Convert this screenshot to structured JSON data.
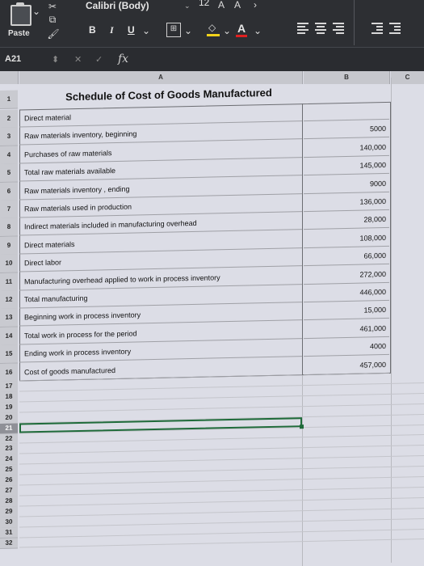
{
  "ribbon": {
    "paste_label": "Paste",
    "font_name": "Calibri (Body)",
    "font_size": "12",
    "bold": "B",
    "italic": "I",
    "underline": "U",
    "font_color_letter": "A",
    "highlight_color": "#f2d21b",
    "font_color": "#e02020"
  },
  "formula_bar": {
    "name_box": "A21",
    "fx": "fx",
    "cancel": "✕",
    "enter": "✓",
    "content": ""
  },
  "columns": [
    "A",
    "B",
    "C"
  ],
  "title_row": {
    "row": "1",
    "text": "Schedule of Cost of Goods Manufactured"
  },
  "rows": [
    {
      "row": "2",
      "label": "Direct material",
      "value": ""
    },
    {
      "row": "3",
      "label": "Raw materials inventory, beginning",
      "value": "5000"
    },
    {
      "row": "4",
      "label": "Purchases of raw materials",
      "value": "140,000"
    },
    {
      "row": "5",
      "label": "Total raw materials available",
      "value": "145,000"
    },
    {
      "row": "6",
      "label": "Raw materials inventory , ending",
      "value": "9000"
    },
    {
      "row": "7",
      "label": "Raw materials used in production",
      "value": "136,000"
    },
    {
      "row": "8",
      "label": "Indirect materials included in manufacturing overhead",
      "value": "28,000"
    },
    {
      "row": "9",
      "label": "Direct materials",
      "value": "108,000"
    },
    {
      "row": "10",
      "label": "Direct labor",
      "value": "66,000"
    },
    {
      "row": "11",
      "label": "Manufacturing overhead applied to work in process inventory",
      "value": "272,000"
    },
    {
      "row": "12",
      "label": "Total manufacturing",
      "value": "446,000"
    },
    {
      "row": "13",
      "label": "Beginning work in process inventory",
      "value": "15,000"
    },
    {
      "row": "14",
      "label": "Total work in process for the period",
      "value": "461,000"
    },
    {
      "row": "15",
      "label": "Ending work in process inventory",
      "value": "4000"
    },
    {
      "row": "16",
      "label": "Cost of goods manufactured",
      "value": "457,000"
    }
  ],
  "empty_rows": [
    "17",
    "18",
    "19",
    "20",
    "21",
    "22",
    "23",
    "24",
    "25",
    "26",
    "27",
    "28",
    "29",
    "30",
    "31",
    "32"
  ],
  "selected_row": "21"
}
